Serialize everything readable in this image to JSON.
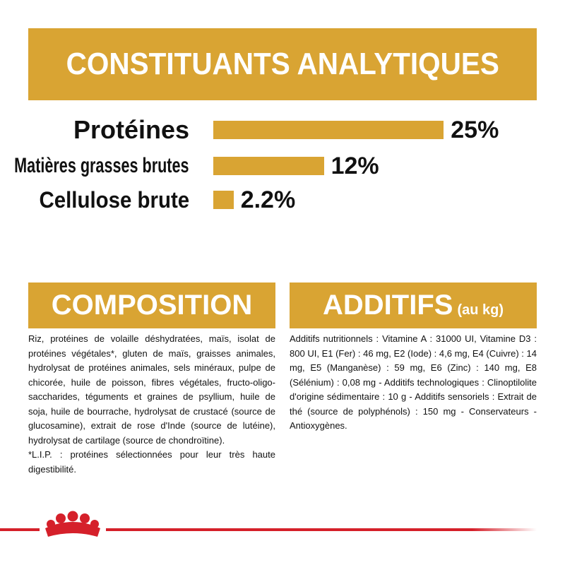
{
  "chart_data": {
    "type": "bar",
    "title": "CONSTITUANTS ANALYTIQUES",
    "categories": [
      "Protéines",
      "Matières grasses brutes",
      "Cellulose brute"
    ],
    "values": [
      25,
      12,
      2.2
    ],
    "value_labels": [
      "25%",
      "12%",
      "2.2%"
    ],
    "color": "#d9a433"
  },
  "composition": {
    "title": "COMPOSITION",
    "paragraphs": [
      "Riz, protéines de volaille déshydratées, maïs, isolat de protéines végétales*, gluten de maïs, graisses animales, hydrolysat de protéines animales, sels minéraux, pulpe de chicorée, huile de poisson, fibres végétales, fructo-oligo-saccharides, téguments et graines de psyllium, huile de soja, huile de bourrache, hydrolysat de crustacé (source de glucosamine), extrait de rose d'Inde (source de lutéine), hydrolysat de cartilage (source de chondroïtine).",
      "*L.I.P. : protéines sélectionnées pour leur très haute digestibilité."
    ]
  },
  "additifs": {
    "title": "ADDITIFS",
    "unit": "(au kg)",
    "text": "Additifs nutritionnels : Vitamine A : 31000 UI, Vitamine D3 : 800 UI, E1 (Fer) : 46 mg, E2 (Iode) : 4,6 mg, E4 (Cuivre) : 14 mg, E5 (Manganèse) : 59 mg, E6 (Zinc) : 140 mg, E8 (Sélénium) : 0,08 mg - Additifs technologiques : Clinoptilolite d'origine sédimentaire : 10 g - Additifs sensoriels : Extrait de thé (source de polyphénols) : 150 mg - Conservateurs - Antioxygènes."
  }
}
